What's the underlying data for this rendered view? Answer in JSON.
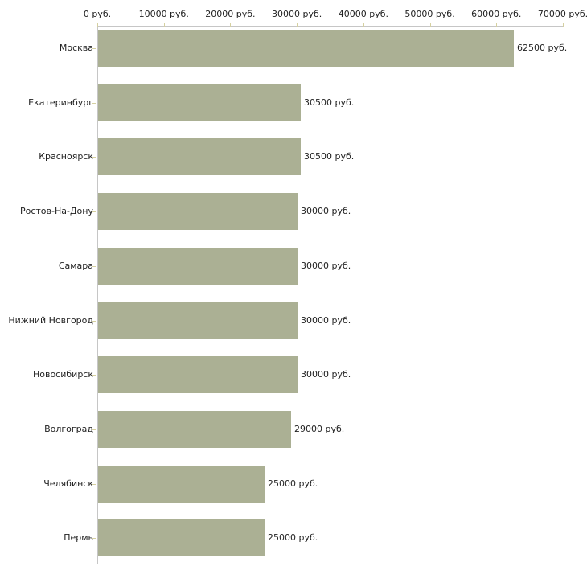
{
  "chart_data": {
    "type": "bar",
    "orientation": "horizontal",
    "title": "",
    "xlabel": "",
    "ylabel": "",
    "grid": false,
    "legend": false,
    "categories": [
      "Москва",
      "Екатеринбург",
      "Красноярск",
      "Ростов-На-Дону",
      "Самара",
      "Нижний Новгород",
      "Новосибирск",
      "Волгоград",
      "Челябинск",
      "Пермь"
    ],
    "values": [
      62500,
      30500,
      30500,
      30000,
      30000,
      30000,
      30000,
      29000,
      25000,
      25000
    ],
    "value_labels": [
      "62500 руб.",
      "30500 руб.",
      "30500 руб.",
      "30000 руб.",
      "30000 руб.",
      "30000 руб.",
      "30000 руб.",
      "29000 руб.",
      "25000 руб.",
      "25000 руб."
    ],
    "x_axis": {
      "position": "top",
      "min": 0,
      "max": 70000,
      "ticks": [
        0,
        10000,
        20000,
        30000,
        40000,
        50000,
        60000,
        70000
      ],
      "tick_labels": [
        "0 руб.",
        "10000 руб.",
        "20000 руб.",
        "30000 руб.",
        "40000 руб.",
        "50000 руб.",
        "60000 руб.",
        "70000 руб."
      ]
    },
    "colors": {
      "bar_fill": "#abb094",
      "axis_line": "#c6c6c6",
      "tick_mark": "#d5d0a0",
      "text": "#222222",
      "background": "#ffffff"
    }
  }
}
